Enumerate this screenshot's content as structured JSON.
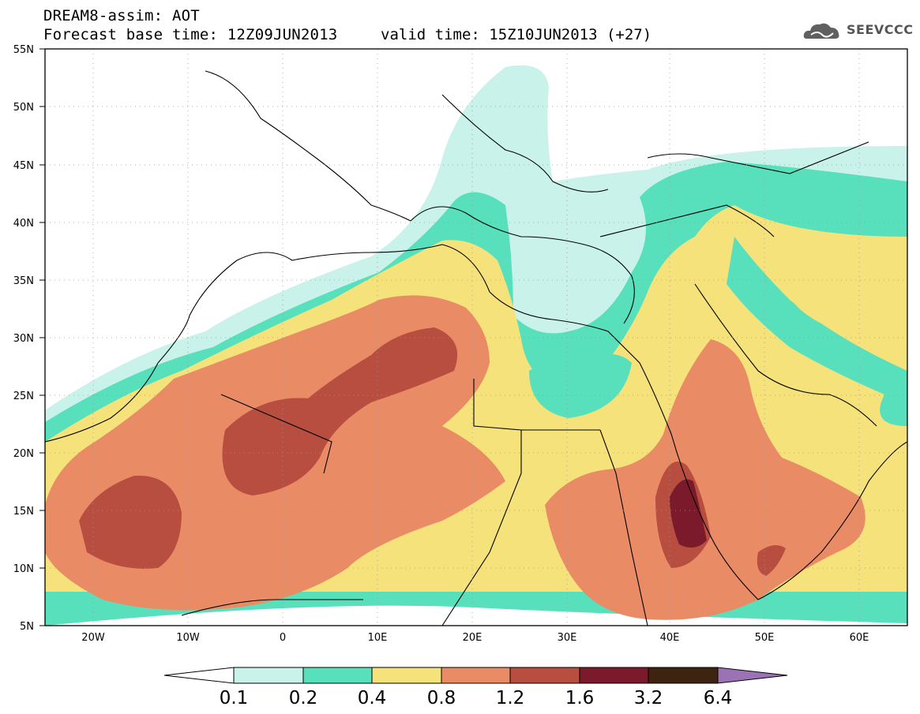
{
  "header": {
    "title": "DREAM8-assim: AOT",
    "base_time": "Forecast base time: 12Z09JUN2013",
    "valid_time": "valid time: 15Z10JUN2013 (+27)",
    "logo_text": "SEEVCCC"
  },
  "map": {
    "lat_labels": [
      "55N",
      "50N",
      "45N",
      "40N",
      "35N",
      "30N",
      "25N",
      "20N",
      "15N",
      "10N",
      "5N"
    ],
    "lon_labels": [
      "20W",
      "10W",
      "0",
      "10E",
      "20E",
      "30E",
      "40E",
      "50E",
      "60E"
    ],
    "lon_range": [
      -25,
      65
    ],
    "lat_range": [
      5,
      55
    ],
    "grid": "dotted"
  },
  "colorbar": {
    "labels": [
      "0.1",
      "0.2",
      "0.4",
      "0.8",
      "1.2",
      "1.6",
      "3.2",
      "6.4"
    ],
    "colors": [
      "#ffffff",
      "#c9f2ea",
      "#58dfbb",
      "#f6e27a",
      "#e98c65",
      "#b84e40",
      "#7b1a2a",
      "#3e2410",
      "#9b72b4"
    ]
  }
}
